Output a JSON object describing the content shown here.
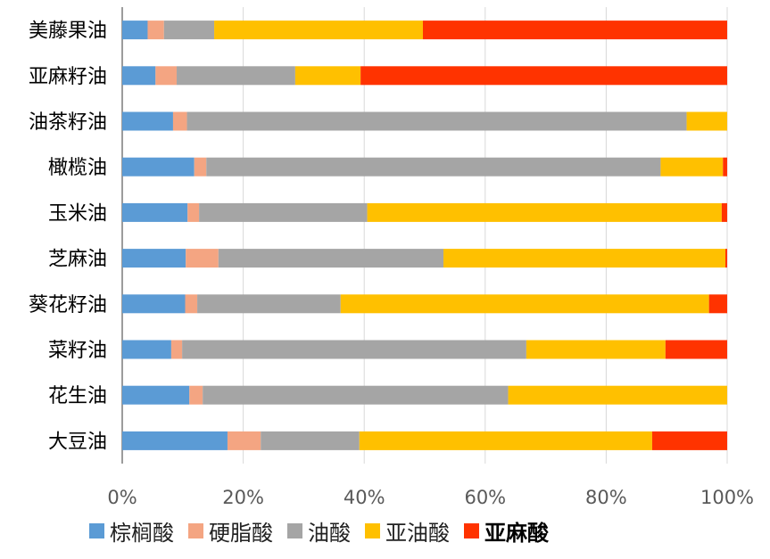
{
  "chart_data": {
    "type": "bar",
    "orientation": "horizontal",
    "stacked": "percent",
    "categories": [
      "美藤果油",
      "亚麻籽油",
      "油茶籽油",
      "橄榄油",
      "玉米油",
      "芝麻油",
      "葵花籽油",
      "菜籽油",
      "花生油",
      "大豆油"
    ],
    "series": [
      {
        "name": "棕榈酸",
        "color": "#5B9BD5",
        "values": [
          4.2,
          5.5,
          8.4,
          11.9,
          10.8,
          10.5,
          10.4,
          8.1,
          11.1,
          17.4
        ]
      },
      {
        "name": "硬脂酸",
        "color": "#F4A582",
        "values": [
          2.7,
          3.5,
          2.3,
          2.0,
          1.9,
          5.4,
          2.0,
          1.8,
          2.2,
          5.5
        ]
      },
      {
        "name": "油酸",
        "color": "#A5A5A5",
        "values": [
          8.3,
          19.6,
          82.6,
          75.1,
          27.8,
          37.2,
          23.7,
          56.9,
          50.5,
          16.3
        ]
      },
      {
        "name": "亚油酸",
        "color": "#FFC000",
        "values": [
          34.5,
          10.8,
          6.7,
          10.3,
          58.6,
          46.6,
          60.9,
          23.0,
          36.2,
          48.4
        ]
      },
      {
        "name": "亚麻酸",
        "color": "#FF3300",
        "values": [
          50.3,
          60.6,
          0.0,
          0.7,
          0.9,
          0.3,
          3.0,
          10.2,
          0.0,
          12.4
        ]
      }
    ],
    "xlim": [
      0,
      100
    ],
    "x_ticks": [
      "0%",
      "20%",
      "40%",
      "60%",
      "80%",
      "100%"
    ],
    "grid": true,
    "legend_position": "bottom",
    "legend_bold": [
      "亚麻酸"
    ]
  }
}
